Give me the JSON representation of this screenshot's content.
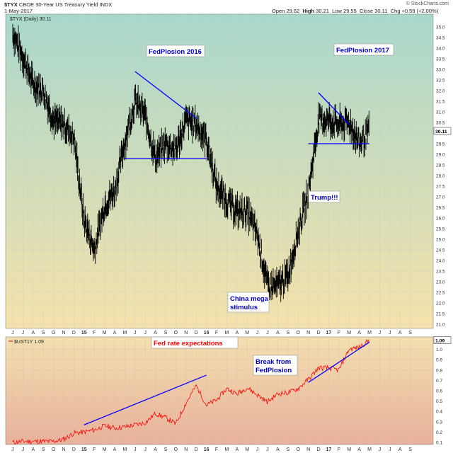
{
  "header": {
    "symbol": "$TYX",
    "description": "CBOE 30-Year US Treasury Yield INDX",
    "date": "1-May-2017",
    "open_label": "Open",
    "open_value": "29.62",
    "high_label": "High",
    "high_value": "30.21",
    "low_label": "Low",
    "low_value": "29.55",
    "close_label": "Close",
    "close_value": "30.11",
    "chg_label": "Chg",
    "chg_value": "+0.59 (+2.00%)",
    "watermark": "© StockCharts.com"
  },
  "colors": {
    "price_bars": "#000000",
    "trendline": "#0000ff",
    "ust_line": "#ff0000",
    "annotation_text": "#0000cc",
    "fed_text": "#ff0000",
    "upper_bg_top": "#a8d8cc",
    "upper_bg_bottom": "#f6e2aa",
    "lower_bg_top": "#f3e0b0",
    "lower_bg_bottom": "#e8b09a"
  },
  "chart_data": [
    {
      "type": "line",
      "title": "$TYX (Daily) 30.11",
      "ylim": [
        20.8,
        35.6
      ],
      "y_ticks": [
        "21.0",
        "21.5",
        "22.0",
        "22.5",
        "23.0",
        "23.5",
        "24.0",
        "24.5",
        "25.0",
        "25.5",
        "26.0",
        "26.5",
        "27.0",
        "27.5",
        "28.0",
        "28.5",
        "29.0",
        "29.5",
        "30.0",
        "30.5",
        "31.0",
        "31.5",
        "32.0",
        "32.5",
        "33.0",
        "33.5",
        "34.0",
        "34.5",
        "35.0"
      ],
      "last_value_label": "30.11",
      "x_ticks": [
        "J",
        "J",
        "A",
        "S",
        "O",
        "N",
        "D",
        "15",
        "F",
        "M",
        "A",
        "M",
        "J",
        "J",
        "A",
        "S",
        "O",
        "N",
        "D",
        "16",
        "F",
        "M",
        "A",
        "M",
        "J",
        "J",
        "A",
        "S",
        "O",
        "N",
        "D",
        "17",
        "F",
        "M",
        "A",
        "M",
        "J",
        "J",
        "A",
        "S"
      ],
      "x_ticks_bold": [
        "15",
        "16",
        "17"
      ],
      "x": [
        "2014-06",
        "2014-07",
        "2014-08",
        "2014-09",
        "2014-10",
        "2014-11",
        "2014-12",
        "2015-01",
        "2015-02",
        "2015-03",
        "2015-04",
        "2015-05",
        "2015-06",
        "2015-07",
        "2015-08",
        "2015-09",
        "2015-10",
        "2015-11",
        "2015-12",
        "2016-01",
        "2016-02",
        "2016-03",
        "2016-04",
        "2016-05",
        "2016-06",
        "2016-07",
        "2016-08",
        "2016-09",
        "2016-10",
        "2016-11",
        "2016-12",
        "2017-01",
        "2017-02",
        "2017-03",
        "2017-04",
        "2017-05"
      ],
      "series": [
        {
          "values": [
            34.7,
            33.6,
            32.3,
            32.0,
            30.6,
            30.4,
            29.8,
            25.9,
            24.5,
            26.6,
            27.3,
            29.6,
            31.5,
            30.8,
            28.8,
            29.5,
            29.2,
            30.6,
            30.4,
            29.7,
            27.5,
            26.8,
            26.3,
            26.3,
            25.2,
            22.8,
            22.8,
            23.3,
            25.4,
            27.2,
            30.6,
            30.6,
            30.4,
            30.5,
            29.5,
            30.1
          ]
        }
      ],
      "annotations": [
        {
          "text": "FedPlosion 2016"
        },
        {
          "text": "FedPlosion 2017"
        },
        {
          "text": "Trump!!!"
        },
        {
          "text": "China mega stimulus"
        }
      ],
      "trendlines": [
        {
          "from": [
            "2015-06",
            32.9
          ],
          "to": [
            "2015-12",
            30.7
          ]
        },
        {
          "from": [
            "2015-05",
            28.8
          ],
          "to": [
            "2016-01",
            28.8
          ]
        },
        {
          "from": [
            "2016-12",
            31.9
          ],
          "to": [
            "2017-03",
            30.4
          ]
        },
        {
          "from": [
            "2016-11",
            29.5
          ],
          "to": [
            "2017-05",
            29.5
          ]
        }
      ]
    },
    {
      "type": "line",
      "title": "$UST1Y 1.09",
      "ylim": [
        0.08,
        1.12
      ],
      "y_ticks": [
        "0.1",
        "0.2",
        "0.3",
        "0.4",
        "0.5",
        "0.6",
        "0.7",
        "0.8",
        "0.9",
        "1.0"
      ],
      "last_value_label": "1.09",
      "x": [
        "2014-06",
        "2014-07",
        "2014-08",
        "2014-09",
        "2014-10",
        "2014-11",
        "2014-12",
        "2015-01",
        "2015-02",
        "2015-03",
        "2015-04",
        "2015-05",
        "2015-06",
        "2015-07",
        "2015-08",
        "2015-09",
        "2015-10",
        "2015-11",
        "2015-12",
        "2016-01",
        "2016-02",
        "2016-03",
        "2016-04",
        "2016-05",
        "2016-06",
        "2016-07",
        "2016-08",
        "2016-09",
        "2016-10",
        "2016-11",
        "2016-12",
        "2017-01",
        "2017-02",
        "2017-03",
        "2017-04",
        "2017-05"
      ],
      "series": [
        {
          "values": [
            0.1,
            0.11,
            0.11,
            0.11,
            0.11,
            0.13,
            0.19,
            0.2,
            0.22,
            0.26,
            0.24,
            0.25,
            0.27,
            0.29,
            0.38,
            0.34,
            0.28,
            0.48,
            0.65,
            0.46,
            0.51,
            0.62,
            0.57,
            0.63,
            0.56,
            0.49,
            0.57,
            0.58,
            0.62,
            0.71,
            0.82,
            0.82,
            0.8,
            1.0,
            1.02,
            1.09
          ]
        }
      ],
      "annotations": [
        {
          "text": "Fed rate expectations"
        },
        {
          "text": "Break from FedPlosion"
        }
      ],
      "trendlines": [
        {
          "from": [
            "2015-01",
            0.27
          ],
          "to": [
            "2016-01",
            0.75
          ]
        },
        {
          "from": [
            "2016-11",
            0.68
          ],
          "to": [
            "2017-05",
            1.07
          ]
        }
      ]
    }
  ]
}
